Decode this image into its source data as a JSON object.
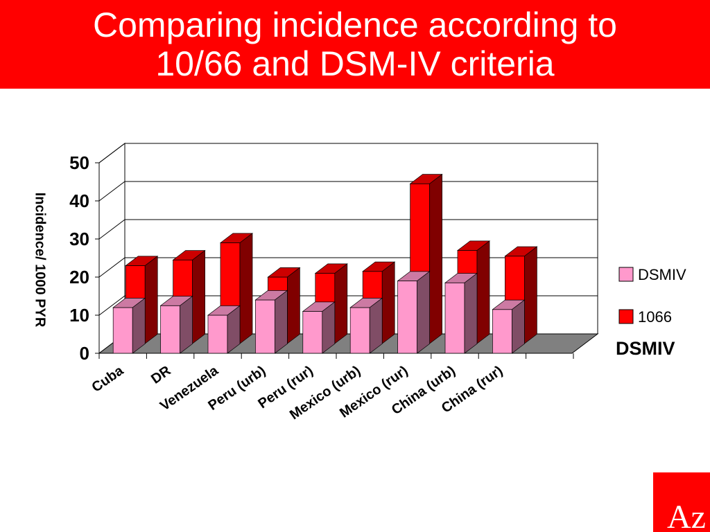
{
  "title_line1": "Comparing incidence according to",
  "title_line2": "10/66 and DSM-IV criteria",
  "colors": {
    "title_bg": "#ff0000",
    "title_text": "#ffffff",
    "dsmiv_front": "#ff99cc",
    "dsmiv_top": "#cc7aa3",
    "dsmiv_side": "#804d66",
    "s1066_front": "#ff0000",
    "s1066_top": "#cc0000",
    "s1066_side": "#800000",
    "floor": "#808080",
    "logo_red": "#ff0000"
  },
  "chart_data": {
    "type": "bar",
    "stacked_3d": true,
    "title": "",
    "xlabel": "",
    "ylabel": "Incidence/ 1000 PYR",
    "ylim": [
      0,
      50
    ],
    "yticks": [
      0,
      10,
      20,
      30,
      40,
      50
    ],
    "categories": [
      "Cuba",
      "DR",
      "Venezuela",
      "Peru (urb)",
      "Peru (rur)",
      "Mexico (urb)",
      "Mexico (rur)",
      "China (urb)",
      "China (rur)"
    ],
    "series": [
      {
        "name": "DSMIV",
        "values": [
          12,
          12.5,
          10,
          14,
          11,
          12,
          19,
          18.5,
          11.5
        ]
      },
      {
        "name": "1066",
        "values": [
          23,
          24.5,
          29,
          20,
          21,
          21.5,
          44.5,
          27,
          25.5
        ]
      }
    ],
    "legend_position": "right",
    "legend_series_title": "DSMIV",
    "grid": true
  }
}
